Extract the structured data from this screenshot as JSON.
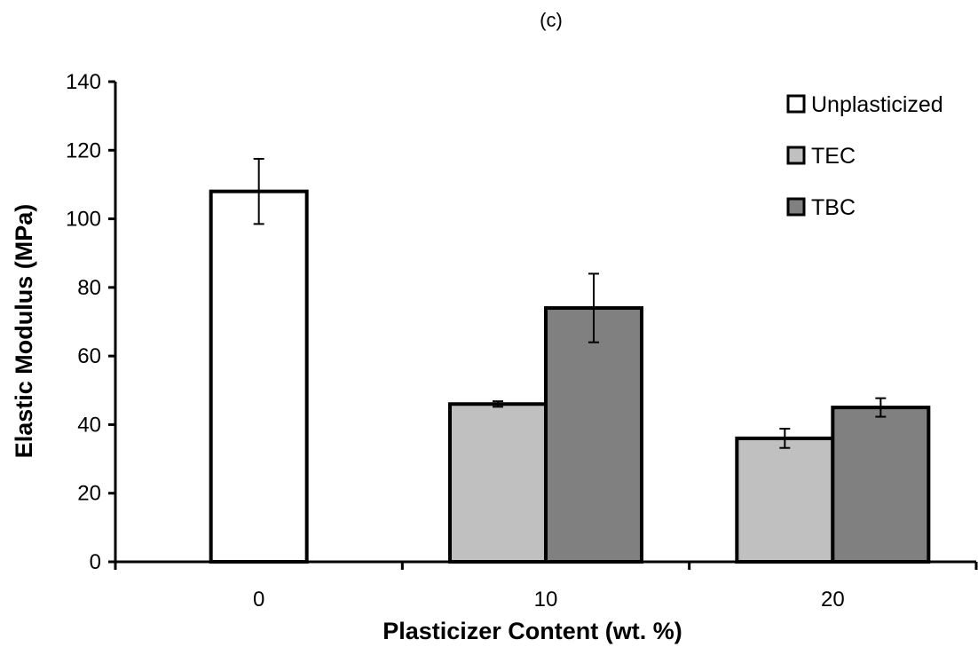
{
  "chart_data": {
    "type": "bar",
    "panel_label": "(c)",
    "title": "",
    "xlabel": "Plasticizer Content (wt. %)",
    "ylabel": "Elastic Modulus (MPa)",
    "ylim": [
      0,
      140
    ],
    "yticks": [
      0,
      20,
      40,
      60,
      80,
      100,
      120,
      140
    ],
    "categories": [
      "0",
      "10",
      "20"
    ],
    "legend_position": "top-right",
    "grid": false,
    "series": [
      {
        "name": "Unplasticized",
        "color": "#ffffff",
        "values": [
          108,
          null,
          null
        ],
        "errors": [
          9.5,
          null,
          null
        ]
      },
      {
        "name": "TEC",
        "color": "#c0c0c0",
        "values": [
          null,
          46,
          36
        ],
        "errors": [
          null,
          0.8,
          2.8
        ]
      },
      {
        "name": "TBC",
        "color": "#808080",
        "values": [
          null,
          74,
          45
        ],
        "errors": [
          null,
          10,
          2.7
        ]
      }
    ]
  }
}
